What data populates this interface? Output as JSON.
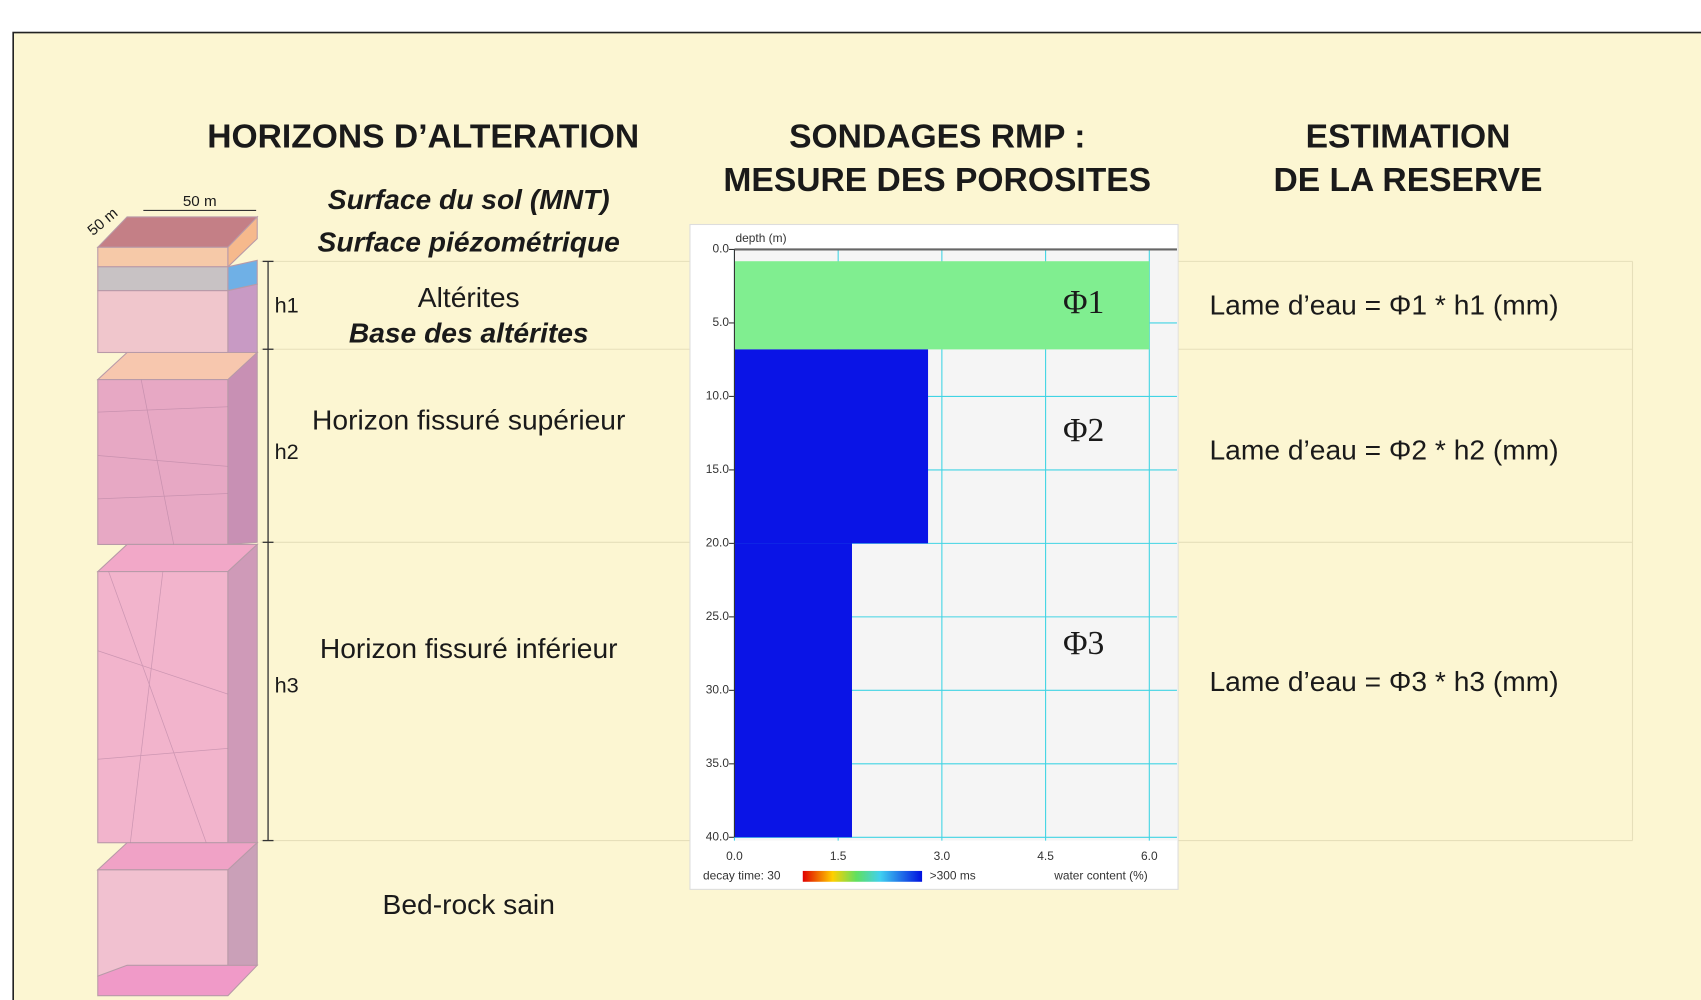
{
  "titles": {
    "alteration": "HORIZONS D’ALTERATION",
    "sondages": [
      "SONDAGES RMP :",
      "MESURE DES POROSITES"
    ],
    "estimation": [
      "ESTIMATION",
      "DE LA RESERVE"
    ]
  },
  "column": {
    "width_label": "50 m",
    "depth_label": "50 m"
  },
  "horizon_labels": {
    "surface_sol": "Surface du sol (MNT)",
    "surface_piezo": "Surface piézométrique",
    "alterites": "Altérites",
    "base_alterites": "Base des altérites",
    "fissure_superieur": "Horizon fissuré supérieur",
    "fissure_inferieur": "Horizon fissuré inférieur",
    "bedrock": "Bed-rock sain"
  },
  "heights": [
    "h1",
    "h2",
    "h3"
  ],
  "chart_data": {
    "type": "bar",
    "orientation": "horizontal",
    "y_label": "depth (m)",
    "x_label": "water content (%)",
    "colorbar": {
      "min_label": "decay time: 30",
      "max_label": ">300 ms"
    },
    "ylim": [
      0,
      40
    ],
    "yticks": [
      {
        "value": 0,
        "label": "0.0"
      },
      {
        "value": 5,
        "label": "5.0"
      },
      {
        "value": 10,
        "label": "10.0"
      },
      {
        "value": 15,
        "label": "15.0"
      },
      {
        "value": 20,
        "label": "20.0"
      },
      {
        "value": 25,
        "label": "25.0"
      },
      {
        "value": 30,
        "label": "30.0"
      },
      {
        "value": 35,
        "label": "35.0"
      },
      {
        "value": 40,
        "label": "40.0"
      }
    ],
    "xlim": [
      0,
      6.4
    ],
    "xticks": [
      {
        "value": 0,
        "label": "0.0"
      },
      {
        "value": 1.5,
        "label": "1.5"
      },
      {
        "value": 3,
        "label": "3.0"
      },
      {
        "value": 4.5,
        "label": "4.5"
      },
      {
        "value": 6,
        "label": "6.0"
      }
    ],
    "grid": true,
    "layers": [
      {
        "name": "Φ1",
        "top": 0.8,
        "bottom": 6.8,
        "value": 6.0,
        "color": "#80ee90"
      },
      {
        "name": "Φ2",
        "top": 6.8,
        "bottom": 20,
        "value": 2.8,
        "color": "#0a14e6"
      },
      {
        "name": "Φ3",
        "top": 20,
        "bottom": 40,
        "value": 1.7,
        "color": "#0a14e6"
      }
    ]
  },
  "estimates": [
    "Lame d’eau = Φ1 * h1 (mm)",
    "Lame d’eau = Φ2 * h2 (mm)",
    "Lame d’eau = Φ3 * h3 (mm)"
  ]
}
